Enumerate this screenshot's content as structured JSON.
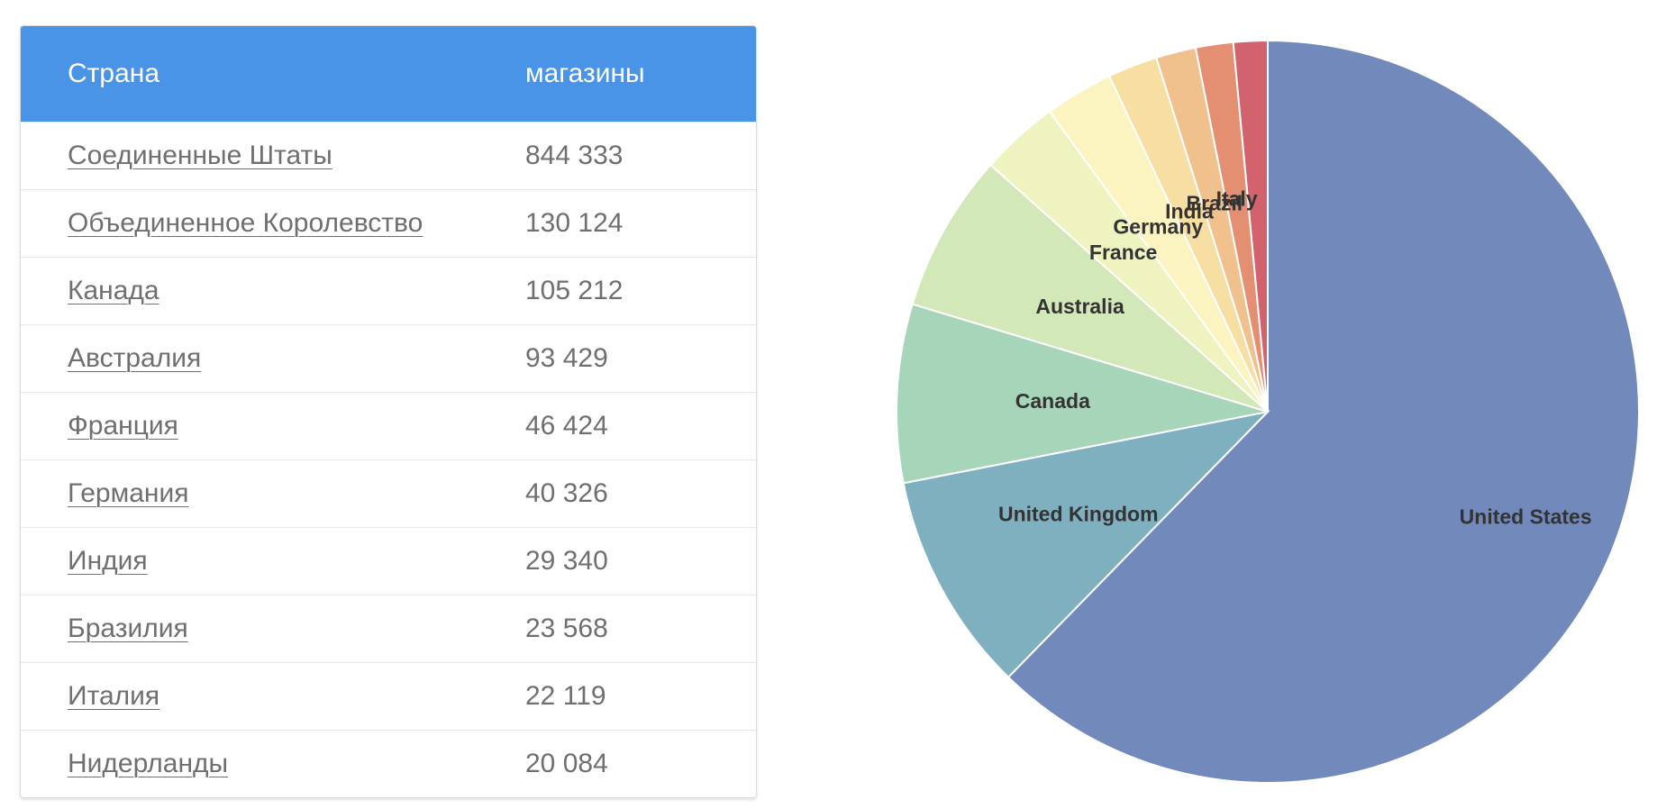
{
  "table": {
    "header": {
      "country": "Страна",
      "stores": "магазины"
    },
    "rows": [
      {
        "country": "Соединенные Штаты",
        "stores": "844 333"
      },
      {
        "country": "Объединенное Королевство",
        "stores": "130 124"
      },
      {
        "country": "Канада",
        "stores": "105 212"
      },
      {
        "country": "Австралия",
        "stores": "93 429"
      },
      {
        "country": "Франция",
        "stores": "46 424"
      },
      {
        "country": "Германия",
        "stores": "40 326"
      },
      {
        "country": "Индия",
        "stores": "29 340"
      },
      {
        "country": "Бразилия",
        "stores": "23 568"
      },
      {
        "country": "Италия",
        "stores": "22 119"
      },
      {
        "country": "Нидерланды",
        "stores": "20 084"
      }
    ]
  },
  "colors": {
    "header_bg": "#4a94e8"
  },
  "chart_data": {
    "type": "pie",
    "title": "",
    "slices": [
      {
        "label": "United States",
        "value": 844333,
        "color": "#7289bb"
      },
      {
        "label": "United Kingdom",
        "value": 130124,
        "color": "#7fb0c0"
      },
      {
        "label": "Canada",
        "value": 105212,
        "color": "#a6d5b9"
      },
      {
        "label": "Australia",
        "value": 93429,
        "color": "#d2e8b8"
      },
      {
        "label": "France",
        "value": 46424,
        "color": "#eef3bf"
      },
      {
        "label": "Germany",
        "value": 40326,
        "color": "#fbf3c0"
      },
      {
        "label": "India",
        "value": 29340,
        "color": "#f7dea2"
      },
      {
        "label": "Brazil",
        "value": 23568,
        "color": "#f0c18c"
      },
      {
        "label": "Italy",
        "value": 22119,
        "color": "#e58f72"
      },
      {
        "label": "",
        "value": 20084,
        "color": "#d2636e"
      }
    ]
  }
}
